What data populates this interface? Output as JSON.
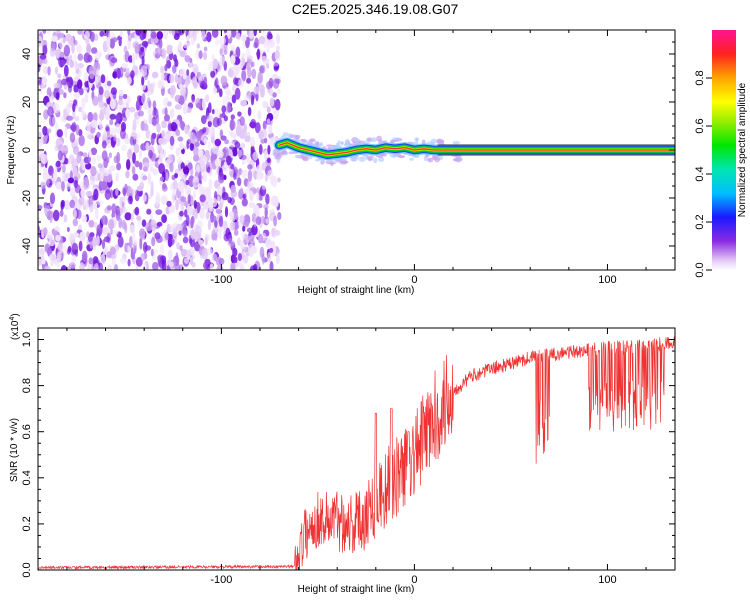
{
  "title": "C2E5.2025.346.19.08.G07",
  "spectrogram": {
    "type": "heatmap",
    "xlabel": "Height of straight line (km)",
    "ylabel": "Frequency (Hz)",
    "xlim": [
      -195,
      135
    ],
    "ylim": [
      -50,
      50
    ],
    "xticks": [
      -100,
      0,
      100
    ],
    "yticks": [
      -40,
      -20,
      0,
      20,
      40
    ],
    "noise_region_end_km": -70,
    "signal_track": [
      {
        "x": -70,
        "y": 2
      },
      {
        "x": -66,
        "y": 3
      },
      {
        "x": -60,
        "y": 1
      },
      {
        "x": -55,
        "y": 0
      },
      {
        "x": -50,
        "y": -1
      },
      {
        "x": -45,
        "y": -2
      },
      {
        "x": -40,
        "y": -1.5
      },
      {
        "x": -35,
        "y": -1
      },
      {
        "x": -30,
        "y": 0
      },
      {
        "x": -25,
        "y": 0.5
      },
      {
        "x": -20,
        "y": 0
      },
      {
        "x": -15,
        "y": 1
      },
      {
        "x": -10,
        "y": 0.5
      },
      {
        "x": -5,
        "y": 1
      },
      {
        "x": 0,
        "y": 0
      },
      {
        "x": 5,
        "y": 0.5
      },
      {
        "x": 10,
        "y": 0
      },
      {
        "x": 135,
        "y": 0
      }
    ],
    "colorbar": {
      "label": "Normalized spectral amplitude",
      "range": [
        0.0,
        1.0
      ],
      "ticks": [
        0.0,
        0.2,
        0.4,
        0.6,
        0.8
      ],
      "tick_labels": [
        "0.0",
        "0.2",
        "0.4",
        "0.6",
        "0.8"
      ]
    }
  },
  "snr": {
    "type": "line",
    "xlabel": "Height of straight line (km)",
    "ylabel": "SNR (10 * v/v)",
    "scale_label": "(x10^4)",
    "scale_base": "(x10",
    "scale_exp": "4",
    "scale_close": ")",
    "xlim": [
      -195,
      135
    ],
    "ylim": [
      0.0,
      1.05
    ],
    "xticks": [
      -100,
      0,
      100
    ],
    "yticks": [
      0.0,
      0.2,
      0.4,
      0.6,
      0.8,
      1.0
    ],
    "ytick_labels": [
      "0.0",
      "0.2",
      "0.4",
      "0.6",
      "0.8",
      "1.0"
    ],
    "series_color": "#ee3333",
    "envelope": [
      {
        "x": -195,
        "y": 0.01
      },
      {
        "x": -62,
        "y": 0.015
      },
      {
        "x": -57,
        "y": 0.15
      },
      {
        "x": -50,
        "y": 0.22
      },
      {
        "x": -40,
        "y": 0.22
      },
      {
        "x": -30,
        "y": 0.2
      },
      {
        "x": -20,
        "y": 0.3
      },
      {
        "x": -10,
        "y": 0.4
      },
      {
        "x": 0,
        "y": 0.5
      },
      {
        "x": 10,
        "y": 0.65
      },
      {
        "x": 20,
        "y": 0.78
      },
      {
        "x": 30,
        "y": 0.85
      },
      {
        "x": 40,
        "y": 0.88
      },
      {
        "x": 50,
        "y": 0.9
      },
      {
        "x": 60,
        "y": 0.93
      },
      {
        "x": 80,
        "y": 0.95
      },
      {
        "x": 100,
        "y": 0.97
      },
      {
        "x": 120,
        "y": 0.98
      },
      {
        "x": 135,
        "y": 0.99
      }
    ],
    "dip_events": [
      {
        "x_start": 62,
        "x_end": 70,
        "min_y": 0.45
      },
      {
        "x_start": 90,
        "x_end": 130,
        "min_y": 0.6
      }
    ],
    "spike_events": [
      {
        "x": -20,
        "y": 0.68
      },
      {
        "x": -12,
        "y": 0.7
      },
      {
        "x": -3,
        "y": 0.6
      }
    ]
  }
}
